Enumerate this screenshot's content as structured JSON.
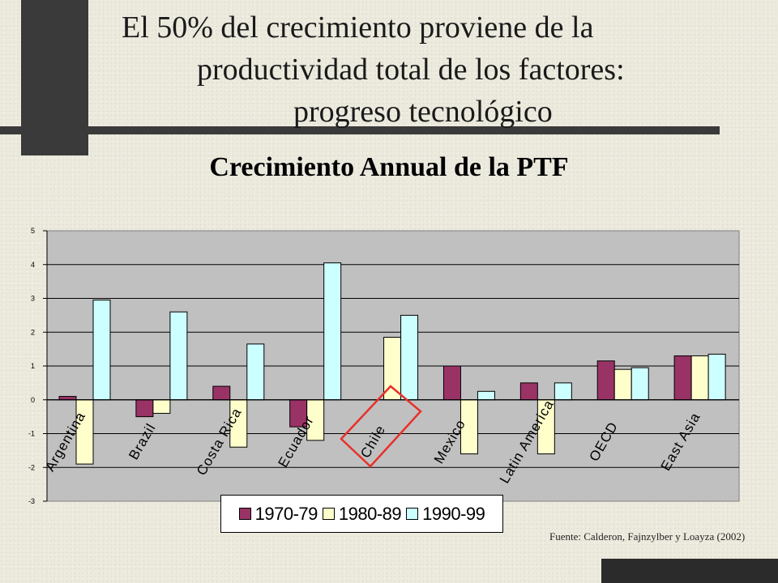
{
  "slide": {
    "title_line1": "El 50% del crecimiento proviene de la",
    "title_line2": "productividad total de los factores:",
    "title_line3": "progreso tecnológico",
    "source": "Fuente: Calderon, Fajnzylber y Loayza (2002)"
  },
  "chart_data": {
    "type": "bar",
    "title": "Crecimiento Annual de la PTF",
    "categories": [
      "Argentina",
      "Brazil",
      "Costa Rica",
      "Ecuador",
      "Chile",
      "Mexico",
      "Latin America",
      "OECD",
      "East Asia"
    ],
    "series": [
      {
        "name": "1970-79",
        "color": "#993366",
        "values": [
          0.1,
          -0.5,
          0.4,
          -0.8,
          null,
          1.0,
          0.5,
          1.15,
          1.3
        ]
      },
      {
        "name": "1980-89",
        "color": "#ffffcc",
        "values": [
          -1.9,
          -0.4,
          -1.4,
          -1.2,
          1.85,
          -1.6,
          -1.6,
          0.9,
          1.3
        ]
      },
      {
        "name": "1990-99",
        "color": "#ccffff",
        "values": [
          2.95,
          2.6,
          1.65,
          4.05,
          2.5,
          0.25,
          0.5,
          0.95,
          1.35
        ]
      }
    ],
    "ylim": [
      -3,
      5
    ],
    "yticks": [
      "-3",
      "-2",
      "-1",
      "0",
      "1",
      "2",
      "3",
      "4",
      "5"
    ],
    "grid": true,
    "legend_position": "bottom",
    "highlight_category": "Chile",
    "highlight_color": "#e8302a"
  }
}
